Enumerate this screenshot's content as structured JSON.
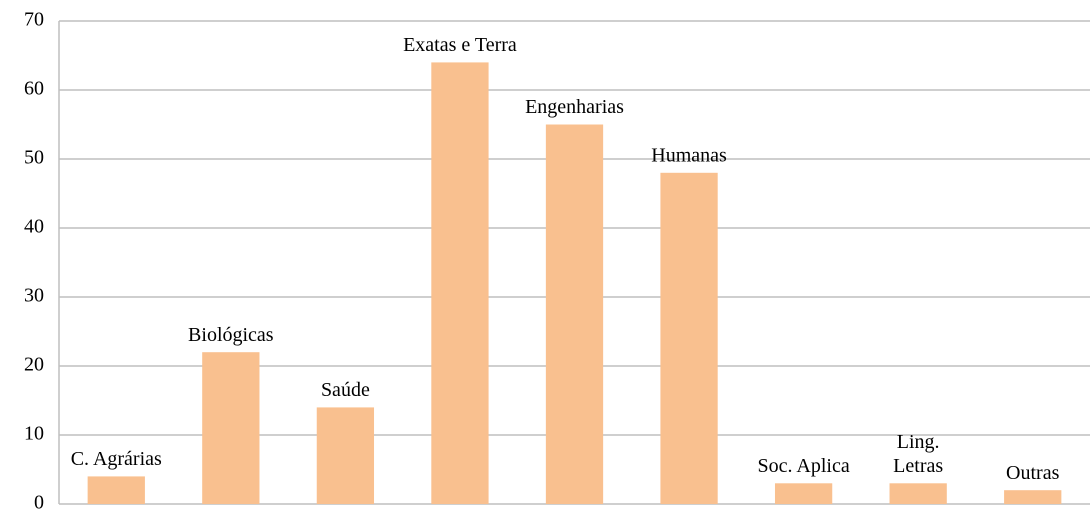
{
  "chart_data": {
    "type": "bar",
    "categories": [
      "C. Agrárias",
      "Biológicas",
      "Saúde",
      "Exatas e Terra",
      "Engenharias",
      "Humanas",
      "Soc. Aplica",
      [
        "Ling.",
        "Letras"
      ],
      "Outras"
    ],
    "values": [
      4,
      22,
      14,
      64,
      55,
      48,
      3,
      3,
      2
    ],
    "color": "#f9c08f",
    "ylim": [
      0,
      70
    ],
    "yticks": [
      0,
      10,
      20,
      30,
      40,
      50,
      60,
      70
    ],
    "grid": true
  }
}
